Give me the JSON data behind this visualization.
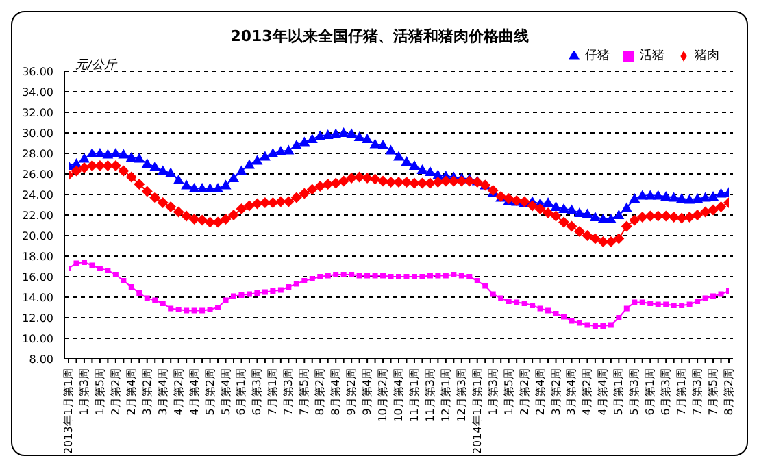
{
  "chart_data": {
    "type": "line",
    "title": "2013年以来全国仔猪、活猪和猪肉价格曲线",
    "ylabel": "元/公斤",
    "categories": [
      "2013年1月第1周",
      null,
      "1月第3周",
      null,
      "1月第5周",
      null,
      "2月第2周",
      null,
      "2月第4周",
      null,
      "3月第2周",
      null,
      "3月第4周",
      null,
      "4月第2周",
      null,
      "4月第4周",
      null,
      "5月第2周",
      null,
      "5月第4周",
      null,
      "6月第1周",
      null,
      "6月第3周",
      null,
      "7月第1周",
      null,
      "7月第3周",
      null,
      "7月第5周",
      null,
      "8月第2周",
      null,
      "8月第4周",
      null,
      "9月第2周",
      null,
      "9月第4周",
      null,
      "10月第2周",
      null,
      "10月第4周",
      null,
      "11月第1周",
      null,
      "11月第3周",
      null,
      "12月第1周",
      null,
      "12月第3周",
      null,
      "2014年1月第1周",
      null,
      "1月第3周",
      null,
      "1月第5周",
      null,
      "2月第2周",
      null,
      "2月第4周",
      null,
      "3月第2周",
      null,
      "3月第4周",
      null,
      "4月第2周",
      null,
      "4月第4周",
      null,
      "5月第1周",
      null,
      "5月第3周",
      null,
      "6月第1周",
      null,
      "6月第3周",
      null,
      "7月第1周",
      null,
      "7月第3周",
      null,
      "7月第5周",
      null,
      "8月第2周"
    ],
    "series": [
      {
        "name": "仔猪",
        "color": "#0000ff",
        "marker": "triangle",
        "values": [
          26.8,
          27.0,
          27.5,
          28.0,
          28.0,
          27.9,
          28.0,
          27.9,
          27.6,
          27.5,
          27.0,
          26.7,
          26.3,
          26.1,
          25.4,
          24.9,
          24.6,
          24.6,
          24.6,
          24.6,
          24.9,
          25.6,
          26.3,
          26.9,
          27.3,
          27.7,
          28.0,
          28.2,
          28.3,
          28.8,
          29.1,
          29.4,
          29.7,
          29.8,
          29.9,
          30.0,
          29.9,
          29.6,
          29.4,
          28.9,
          28.8,
          28.3,
          27.7,
          27.2,
          26.8,
          26.4,
          26.2,
          25.9,
          25.8,
          25.7,
          25.6,
          25.5,
          25.3,
          24.9,
          24.2,
          23.7,
          23.4,
          23.3,
          23.2,
          23.3,
          23.1,
          23.2,
          22.8,
          22.6,
          22.5,
          22.2,
          22.1,
          21.8,
          21.6,
          21.6,
          22.0,
          22.7,
          23.6,
          23.9,
          23.9,
          23.9,
          23.8,
          23.7,
          23.6,
          23.5,
          23.6,
          23.7,
          23.8,
          24.1,
          24.2
        ]
      },
      {
        "name": "活猪",
        "color": "#ff00ff",
        "marker": "square",
        "values": [
          16.8,
          17.3,
          17.4,
          17.1,
          16.8,
          16.6,
          16.2,
          15.6,
          15.0,
          14.4,
          13.9,
          13.7,
          13.4,
          12.9,
          12.8,
          12.7,
          12.7,
          12.7,
          12.8,
          13.0,
          13.7,
          14.1,
          14.2,
          14.3,
          14.4,
          14.5,
          14.6,
          14.7,
          15.0,
          15.3,
          15.6,
          15.8,
          16.0,
          16.1,
          16.2,
          16.2,
          16.2,
          16.1,
          16.1,
          16.1,
          16.1,
          16.0,
          16.0,
          16.0,
          16.0,
          16.0,
          16.1,
          16.1,
          16.1,
          16.2,
          16.1,
          16.0,
          15.6,
          15.1,
          14.3,
          13.9,
          13.6,
          13.5,
          13.4,
          13.2,
          12.9,
          12.7,
          12.4,
          12.1,
          11.7,
          11.5,
          11.3,
          11.2,
          11.2,
          11.3,
          12.0,
          12.9,
          13.5,
          13.5,
          13.4,
          13.3,
          13.3,
          13.2,
          13.2,
          13.3,
          13.6,
          13.9,
          14.1,
          14.3,
          14.6
        ]
      },
      {
        "name": "猪肉",
        "color": "#ff0000",
        "marker": "diamond",
        "values": [
          25.9,
          26.3,
          26.6,
          26.8,
          26.8,
          26.8,
          26.8,
          26.3,
          25.7,
          25.0,
          24.3,
          23.7,
          23.2,
          22.8,
          22.3,
          21.9,
          21.6,
          21.5,
          21.3,
          21.3,
          21.6,
          22.0,
          22.6,
          22.9,
          23.1,
          23.2,
          23.2,
          23.3,
          23.3,
          23.7,
          24.1,
          24.5,
          24.8,
          25.0,
          25.1,
          25.3,
          25.6,
          25.7,
          25.6,
          25.5,
          25.3,
          25.2,
          25.2,
          25.2,
          25.1,
          25.1,
          25.1,
          25.2,
          25.3,
          25.3,
          25.3,
          25.3,
          25.2,
          24.9,
          24.4,
          23.8,
          23.6,
          23.4,
          23.3,
          22.9,
          22.6,
          22.2,
          21.9,
          21.3,
          20.9,
          20.4,
          20.0,
          19.7,
          19.4,
          19.4,
          19.7,
          20.9,
          21.5,
          21.8,
          21.9,
          21.9,
          21.9,
          21.8,
          21.7,
          21.8,
          22.0,
          22.3,
          22.5,
          22.8,
          23.2
        ]
      }
    ],
    "ylim": [
      8,
      36
    ],
    "yticks": [
      {
        "value": 8,
        "label": "8.00"
      },
      {
        "value": 10,
        "label": "10.00"
      },
      {
        "value": 12,
        "label": "12.00"
      },
      {
        "value": 14,
        "label": "14.00"
      },
      {
        "value": 16,
        "label": "16.00"
      },
      {
        "value": 18,
        "label": "18.00"
      },
      {
        "value": 20,
        "label": "20.00"
      },
      {
        "value": 22,
        "label": "22.00"
      },
      {
        "value": 24,
        "label": "24.00"
      },
      {
        "value": 26,
        "label": "26.00"
      },
      {
        "value": 28,
        "label": "28.00"
      },
      {
        "value": 30,
        "label": "30.00"
      },
      {
        "value": 32,
        "label": "32.00"
      },
      {
        "value": 34,
        "label": "34.00"
      },
      {
        "value": 36,
        "label": "36.00"
      }
    ],
    "grid": "y",
    "legend": "top right",
    "line_style": "solid"
  }
}
